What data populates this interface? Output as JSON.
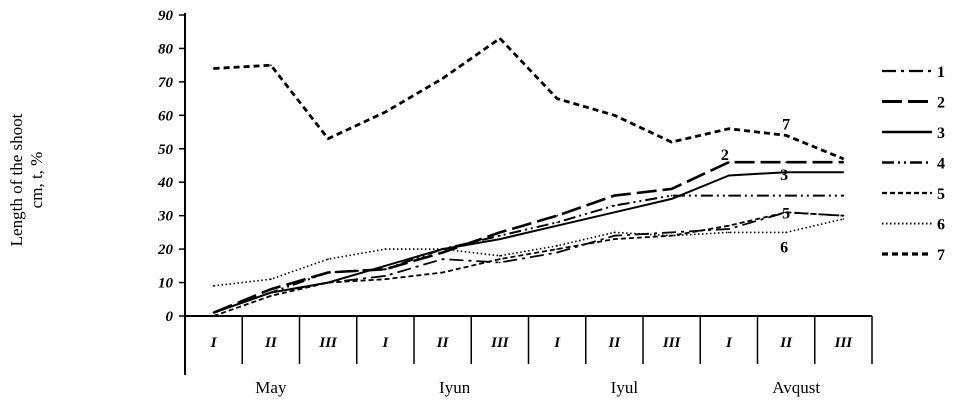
{
  "chart_data": {
    "type": "line",
    "ylabel_line1": "Length of the shoot",
    "ylabel_line2": "cm, t, %",
    "ylim": [
      0,
      90
    ],
    "yticks": [
      0,
      10,
      20,
      30,
      40,
      50,
      60,
      70,
      80,
      90
    ],
    "categories": [
      "I",
      "II",
      "III",
      "I",
      "II",
      "III",
      "I",
      "II",
      "III",
      "I",
      "II",
      "III"
    ],
    "months": [
      "May",
      "Iyun",
      "Iyul",
      "Avqust"
    ],
    "grid": false,
    "legend_position": "right",
    "series": [
      {
        "name": "1",
        "dash": "dashdot",
        "values": [
          1,
          7,
          10,
          12,
          17,
          16,
          19,
          24,
          25,
          26,
          31,
          30
        ]
      },
      {
        "name": "2",
        "dash": "longdash",
        "values": [
          1,
          8,
          13,
          14,
          19,
          25,
          30,
          36,
          38,
          46,
          46,
          46
        ]
      },
      {
        "name": "3",
        "dash": "solid",
        "values": [
          1,
          7,
          10,
          15,
          20,
          23,
          27,
          31,
          35,
          42,
          43,
          43
        ]
      },
      {
        "name": "4",
        "dash": "dashdotdot",
        "values": [
          1,
          7,
          13,
          14,
          20,
          24,
          28,
          33,
          36,
          36,
          36,
          36
        ]
      },
      {
        "name": "5",
        "dash": "dashed",
        "values": [
          0,
          6,
          10,
          11,
          13,
          17,
          20,
          23,
          24,
          27,
          31,
          30
        ]
      },
      {
        "name": "6",
        "dash": "dotted",
        "values": [
          9,
          11,
          17,
          20,
          20,
          18,
          21,
          25,
          24,
          25,
          25,
          29
        ]
      },
      {
        "name": "7",
        "dash": "heavydash",
        "values": [
          74,
          75,
          53,
          61,
          71,
          83,
          65,
          60,
          52,
          56,
          54,
          47
        ]
      }
    ],
    "inline_labels": [
      {
        "text": "7",
        "series": 6,
        "index": 10
      },
      {
        "text": "2",
        "series": 1,
        "index": 9
      },
      {
        "text": "3",
        "series": 2,
        "index": 10
      },
      {
        "text": "5",
        "series": 4,
        "index": 10
      },
      {
        "text": "6",
        "series": 5,
        "index": 10
      }
    ]
  }
}
